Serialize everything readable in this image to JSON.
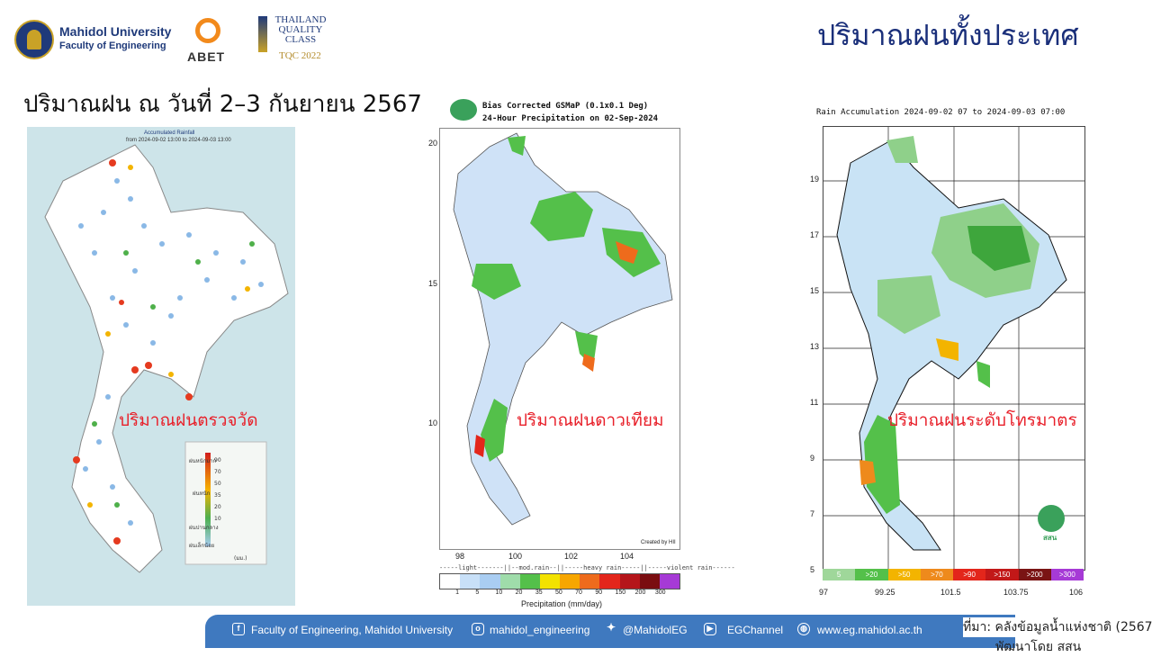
{
  "header": {
    "university": "Mahidol University",
    "faculty": "Faculty of Engineering",
    "abet": "ABET",
    "tqc_lines": [
      "THAILAND",
      "QUALITY",
      "CLASS"
    ],
    "tqc_year": "TQC 2022",
    "page_title": "ปริมาณฝนทั้งประเทศ",
    "subtitle": "ปริมาณฝน ณ วันที่ 2–3 กันยายน 2567"
  },
  "panels": {
    "observed": {
      "caption": "ปริมาณฝนตรวจวัด",
      "map_title": "Accumulated Rainfall",
      "map_range": "from 2024-09-02 13:00 to 2024-09-03 13:00",
      "legend_labels": [
        "ฝนหนักมาก",
        "ฝนหนัก",
        "ฝนปานกลาง",
        "ฝนเล็กน้อย"
      ],
      "legend_values": [
        "90",
        "70",
        "50",
        "35",
        "20",
        "10"
      ],
      "legend_unit": "(มม.)"
    },
    "satellite": {
      "caption": "ปริมาณฝนดาวเทียม",
      "title_line1": "Bias Corrected GSMaP (0.1x0.1 Deg)",
      "title_line2": "24-Hour Precipitation on 02-Sep-2024",
      "y_ticks": [
        "20",
        "15",
        "10"
      ],
      "x_ticks": [
        "98",
        "100",
        "102",
        "104"
      ],
      "credit": "Created by HII",
      "categories_label": "-----light-------||--mod.rain--||-----heavy rain-----||-----violent rain------",
      "scale_values": [
        "1",
        "5",
        "10",
        "20",
        "35",
        "50",
        "70",
        "90",
        "150",
        "200",
        "300"
      ],
      "scale_colors": [
        "#ffffff",
        "#c8e0f8",
        "#a9cdf2",
        "#9fdcaa",
        "#54c04a",
        "#f3e200",
        "#f7a600",
        "#ee6b1c",
        "#e3261b",
        "#b5151a",
        "#7a0d10",
        "#a63ad6"
      ],
      "xlabel": "Precipitation (mm/day)"
    },
    "radar": {
      "caption": "ปริมาณฝนระดับโทรมาตร",
      "title": "Rain Accumulation 2024-09-02 07 to 2024-09-03 07:00",
      "y_ticks": [
        "19",
        "17",
        "15",
        "13",
        "11",
        "9",
        "7",
        "5"
      ],
      "x_ticks": [
        "97",
        "99.25",
        "101.5",
        "103.75",
        "106"
      ],
      "scale_labels": [
        "5",
        ">20",
        ">50",
        ">70",
        ">90",
        ">150",
        ">200",
        ">300"
      ],
      "scale_colors": [
        "#9fd79a",
        "#54c04a",
        "#f3b400",
        "#ee8a1c",
        "#e3261b",
        "#c21818",
        "#7a1414",
        "#a63ad6"
      ],
      "logo_text": "สสน"
    }
  },
  "footer": {
    "faculty": "Faculty of Engineering, Mahidol University",
    "instagram": "mahidol_engineering",
    "twitter": "@MahidolEG",
    "youtube": "EGChannel",
    "website": "www.eg.mahidol.ac.th",
    "source_line1": "ที่มา: คลังข้อมูลน้ำแห่งชาติ (2567",
    "source_line2": "พัฒนาโดย สสน"
  }
}
